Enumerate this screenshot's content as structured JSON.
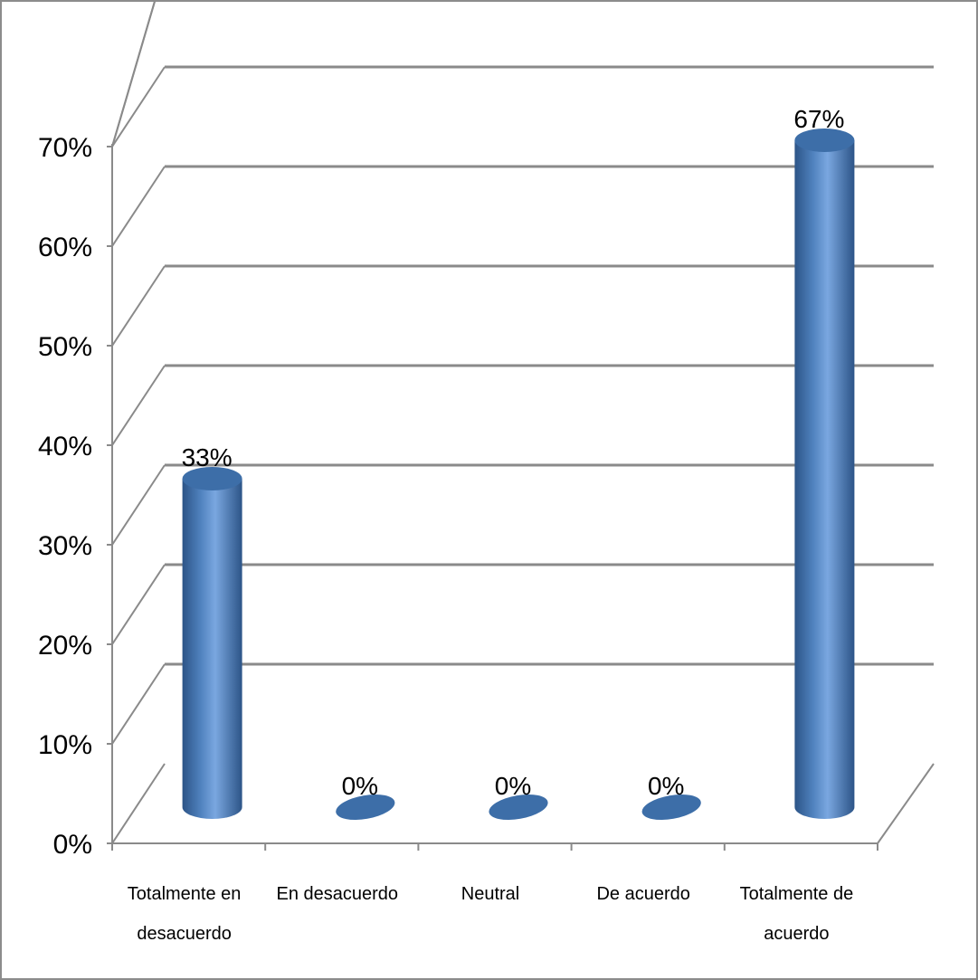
{
  "chart_data": {
    "type": "bar",
    "style": "3d-cylinder",
    "categories": [
      "Totalmente en desacuerdo",
      "En desacuerdo",
      "Neutral",
      "De acuerdo",
      "Totalmente de acuerdo"
    ],
    "category_lines": [
      [
        "Totalmente en",
        "desacuerdo"
      ],
      [
        "En desacuerdo"
      ],
      [
        "Neutral"
      ],
      [
        "De acuerdo"
      ],
      [
        "Totalmente de",
        "acuerdo"
      ]
    ],
    "values": [
      33,
      0,
      0,
      0,
      67
    ],
    "data_labels": [
      "33%",
      "0%",
      "0%",
      "0%",
      "67%"
    ],
    "y_ticks": [
      "0%",
      "10%",
      "20%",
      "30%",
      "40%",
      "50%",
      "60%",
      "70%"
    ],
    "ylim": [
      0,
      70
    ],
    "unit": "%",
    "grid": true,
    "legend": "none",
    "title": "",
    "xlabel": "",
    "ylabel": "",
    "colors": {
      "bar": "#4f81bd",
      "bar_dark": "#2c5487",
      "bar_light": "#7aa7e0",
      "bar_top": "#3d6ea8",
      "grid": "#8a8a8a",
      "frame": "#8c8c8c"
    }
  }
}
